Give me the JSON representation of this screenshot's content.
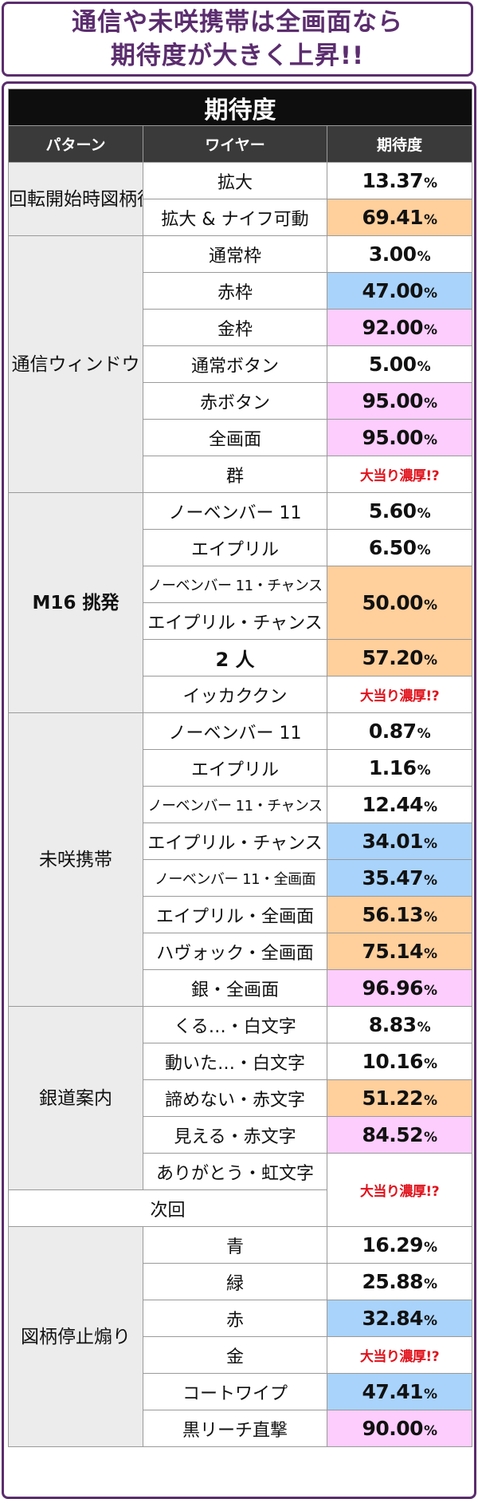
{
  "headline": {
    "line1": "通信や未咲携帯は全画面なら",
    "line2": "期待度が大きく上昇!!"
  },
  "table": {
    "title": "期待度",
    "headers": {
      "pattern": "パターン",
      "wire": "ワイヤー",
      "expectation": "期待度"
    },
    "groups": [
      {
        "pattern": "回転開始時図柄役モノ",
        "rows": [
          {
            "wire": "拡大",
            "value": "13.37",
            "pct": "%",
            "color": "white"
          },
          {
            "wire": "拡大 & ナイフ可動",
            "value": "69.41",
            "pct": "%",
            "color": "orange"
          }
        ]
      },
      {
        "pattern": "通信ウィンドウ",
        "rows": [
          {
            "wire": "通常枠",
            "value": "3.00",
            "pct": "%",
            "color": "white"
          },
          {
            "wire": "赤枠",
            "value": "47.00",
            "pct": "%",
            "color": "blue"
          },
          {
            "wire": "金枠",
            "value": "92.00",
            "pct": "%",
            "color": "pink"
          },
          {
            "wire": "通常ボタン",
            "value": "5.00",
            "pct": "%",
            "color": "white"
          },
          {
            "wire": "赤ボタン",
            "value": "95.00",
            "pct": "%",
            "color": "pink"
          },
          {
            "wire": "全画面",
            "value": "95.00",
            "pct": "%",
            "color": "pink"
          },
          {
            "wire": "群",
            "value": "大当り濃厚!?",
            "pct": "",
            "color": "jackpot"
          }
        ]
      },
      {
        "pattern": "M16 挑発",
        "rows": [
          {
            "wire": "ノーベンバー 11",
            "value": "5.60",
            "pct": "%",
            "color": "white"
          },
          {
            "wire": "エイプリル",
            "value": "6.50",
            "pct": "%",
            "color": "white"
          },
          {
            "wire": "ノーベンバー 11・チャンス",
            "value": "50.00",
            "pct": "%",
            "color": "orange"
          },
          {
            "wire": "エイプリル・チャンス"
          },
          {
            "wire": "2 人",
            "value": "57.20",
            "pct": "%",
            "color": "orange"
          },
          {
            "wire": "イッカククン",
            "value": "大当り濃厚!?",
            "pct": "",
            "color": "jackpot"
          }
        ]
      },
      {
        "pattern": "未咲携帯",
        "rows": [
          {
            "wire": "ノーベンバー 11",
            "value": "0.87",
            "pct": "%",
            "color": "white"
          },
          {
            "wire": "エイプリル",
            "value": "1.16",
            "pct": "%",
            "color": "white"
          },
          {
            "wire": "ノーベンバー 11・チャンス",
            "value": "12.44",
            "pct": "%",
            "color": "white"
          },
          {
            "wire": "エイプリル・チャンス",
            "value": "34.01",
            "pct": "%",
            "color": "blue"
          },
          {
            "wire": "ノーベンバー 11・全画面",
            "value": "35.47",
            "pct": "%",
            "color": "blue"
          },
          {
            "wire": "エイプリル・全画面",
            "value": "56.13",
            "pct": "%",
            "color": "orange"
          },
          {
            "wire": "ハヴォック・全画面",
            "value": "75.14",
            "pct": "%",
            "color": "orange"
          },
          {
            "wire": "銀・全画面",
            "value": "96.96",
            "pct": "%",
            "color": "pink"
          }
        ]
      },
      {
        "pattern": "銀道案内",
        "rows": [
          {
            "wire": "くる…・白文字",
            "value": "8.83",
            "pct": "%",
            "color": "white"
          },
          {
            "wire": "動いた…・白文字",
            "value": "10.16",
            "pct": "%",
            "color": "white"
          },
          {
            "wire": "諦めない・赤文字",
            "value": "51.22",
            "pct": "%",
            "color": "orange"
          },
          {
            "wire": "見える・赤文字",
            "value": "84.52",
            "pct": "%",
            "color": "pink"
          },
          {
            "wire": "ありがとう・虹文字",
            "value": "大当り濃厚!?",
            "pct": "",
            "color": "jackpot"
          }
        ]
      },
      {
        "pattern": "次回",
        "rows": []
      },
      {
        "pattern": "図柄停止煽り",
        "rows": [
          {
            "wire": "青",
            "value": "16.29",
            "pct": "%",
            "color": "white"
          },
          {
            "wire": "緑",
            "value": "25.88",
            "pct": "%",
            "color": "white"
          },
          {
            "wire": "赤",
            "value": "32.84",
            "pct": "%",
            "color": "blue"
          },
          {
            "wire": "金",
            "value": "大当り濃厚!?",
            "pct": "",
            "color": "jackpot"
          },
          {
            "wire": "コートワイプ",
            "value": "47.41",
            "pct": "%",
            "color": "blue"
          },
          {
            "wire": "黒リーチ直撃",
            "value": "90.00",
            "pct": "%",
            "color": "pink"
          }
        ]
      }
    ],
    "colors": {
      "orange": "#ffcf9c",
      "blue": "#a9d3fb",
      "pink": "#fccdfd",
      "jackpot_text": "#e1101a",
      "accent_purple": "#5b2d6e"
    }
  }
}
